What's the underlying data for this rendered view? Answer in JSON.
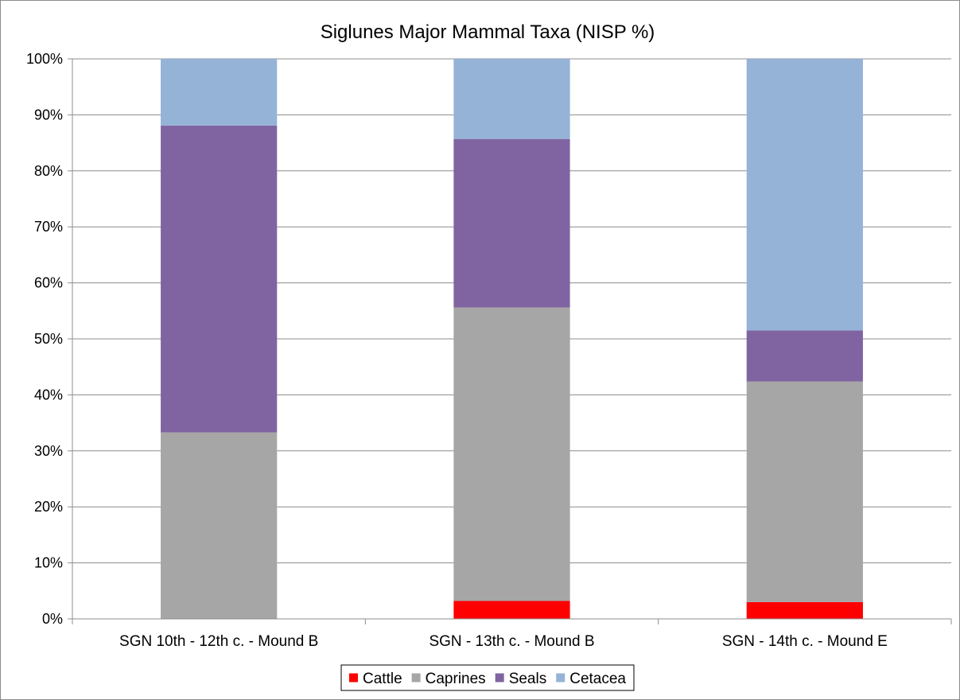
{
  "chart_data": {
    "type": "bar",
    "stacked": true,
    "percent": true,
    "title": "Siglunes Major Mammal Taxa (NISP %)",
    "xlabel": "",
    "ylabel": "",
    "ylim": [
      0,
      100
    ],
    "yticks": [
      "0%",
      "10%",
      "20%",
      "30%",
      "40%",
      "50%",
      "60%",
      "70%",
      "80%",
      "90%",
      "100%"
    ],
    "grid": true,
    "legend_position": "bottom",
    "categories": [
      "SGN 10th - 12th c. -  Mound B",
      "SGN - 13th c. - Mound B",
      "SGN - 14th c. - Mound E"
    ],
    "series": [
      {
        "name": "Cattle",
        "color": "#ff0000",
        "values": [
          0,
          3.2,
          3.0
        ]
      },
      {
        "name": "Caprines",
        "color": "#a6a6a6",
        "values": [
          33.3,
          52.4,
          39.4
        ]
      },
      {
        "name": "Seals",
        "color": "#8064a2",
        "values": [
          54.8,
          30.1,
          9.1
        ]
      },
      {
        "name": "Cetacea",
        "color": "#95b3d7",
        "values": [
          11.9,
          14.3,
          48.5
        ]
      }
    ]
  }
}
